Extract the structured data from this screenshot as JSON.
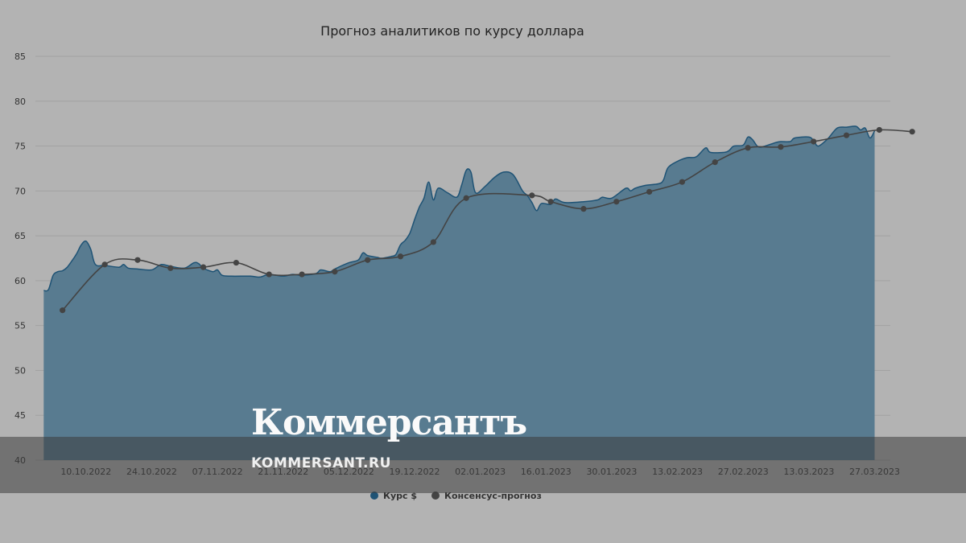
{
  "chart_data": {
    "type": "area",
    "title": "Прогноз аналитиков по курсу доллара",
    "ylim": [
      40,
      85
    ],
    "y_ticks": [
      40,
      45,
      50,
      55,
      60,
      65,
      70,
      75,
      80,
      85
    ],
    "x_range": [
      "2022-10-03",
      "2023-03-30"
    ],
    "x_ticks": [
      {
        "date": "2022-10-10",
        "label": "10.10.2022"
      },
      {
        "date": "2022-10-24",
        "label": "24.10.2022"
      },
      {
        "date": "2022-11-07",
        "label": "07.11.2022"
      },
      {
        "date": "2022-11-21",
        "label": "21.11.2022"
      },
      {
        "date": "2022-12-05",
        "label": "05.12.2022"
      },
      {
        "date": "2022-12-19",
        "label": "19.12.2022"
      },
      {
        "date": "2023-01-02",
        "label": "02.01.2023"
      },
      {
        "date": "2023-01-16",
        "label": "16.01.2023"
      },
      {
        "date": "2023-01-30",
        "label": "30.01.2023"
      },
      {
        "date": "2023-02-13",
        "label": "13.02.2023"
      },
      {
        "date": "2023-02-27",
        "label": "27.02.2023"
      },
      {
        "date": "2023-03-13",
        "label": "13.03.2023"
      },
      {
        "date": "2023-03-27",
        "label": "27.03.2023"
      }
    ],
    "grid": true,
    "legend": "bottom",
    "series": [
      {
        "name": "Курс $",
        "type": "area",
        "color": "#1f5375",
        "fill": "#587b90",
        "points": [
          [
            "2022-10-01",
            58.9
          ],
          [
            "2022-10-02",
            59.0
          ],
          [
            "2022-10-03",
            60.6
          ],
          [
            "2022-10-04",
            61.0
          ],
          [
            "2022-10-05",
            61.1
          ],
          [
            "2022-10-06",
            61.5
          ],
          [
            "2022-10-07",
            62.2
          ],
          [
            "2022-10-08",
            63.0
          ],
          [
            "2022-10-09",
            64.0
          ],
          [
            "2022-10-10",
            64.4
          ],
          [
            "2022-10-11",
            63.5
          ],
          [
            "2022-10-12",
            61.8
          ],
          [
            "2022-10-14",
            61.7
          ],
          [
            "2022-10-17",
            61.5
          ],
          [
            "2022-10-18",
            61.8
          ],
          [
            "2022-10-19",
            61.4
          ],
          [
            "2022-10-21",
            61.3
          ],
          [
            "2022-10-24",
            61.2
          ],
          [
            "2022-10-26",
            61.8
          ],
          [
            "2022-10-28",
            61.6
          ],
          [
            "2022-10-31",
            61.4
          ],
          [
            "2022-11-02",
            62.0
          ],
          [
            "2022-11-03",
            61.9
          ],
          [
            "2022-11-04",
            61.4
          ],
          [
            "2022-11-06",
            61.0
          ],
          [
            "2022-11-07",
            61.2
          ],
          [
            "2022-11-08",
            60.6
          ],
          [
            "2022-11-10",
            60.5
          ],
          [
            "2022-11-14",
            60.5
          ],
          [
            "2022-11-16",
            60.4
          ],
          [
            "2022-11-18",
            60.7
          ],
          [
            "2022-11-21",
            60.5
          ],
          [
            "2022-11-23",
            60.7
          ],
          [
            "2022-11-25",
            60.6
          ],
          [
            "2022-11-28",
            60.8
          ],
          [
            "2022-11-29",
            61.2
          ],
          [
            "2022-12-01",
            61.0
          ],
          [
            "2022-12-02",
            61.3
          ],
          [
            "2022-12-05",
            62.0
          ],
          [
            "2022-12-07",
            62.3
          ],
          [
            "2022-12-08",
            63.1
          ],
          [
            "2022-12-09",
            62.8
          ],
          [
            "2022-12-11",
            62.6
          ],
          [
            "2022-12-12",
            62.5
          ],
          [
            "2022-12-14",
            62.7
          ],
          [
            "2022-12-15",
            62.9
          ],
          [
            "2022-12-16",
            64.0
          ],
          [
            "2022-12-17",
            64.5
          ],
          [
            "2022-12-18",
            65.3
          ],
          [
            "2022-12-19",
            66.8
          ],
          [
            "2022-12-20",
            68.2
          ],
          [
            "2022-12-21",
            69.2
          ],
          [
            "2022-12-22",
            71.0
          ],
          [
            "2022-12-23",
            69.0
          ],
          [
            "2022-12-24",
            70.3
          ],
          [
            "2022-12-26",
            69.8
          ],
          [
            "2022-12-28",
            69.3
          ],
          [
            "2022-12-29",
            70.6
          ],
          [
            "2022-12-30",
            72.3
          ],
          [
            "2022-12-31",
            72.1
          ],
          [
            "2023-01-01",
            69.8
          ],
          [
            "2023-01-03",
            70.5
          ],
          [
            "2023-01-05",
            71.5
          ],
          [
            "2023-01-07",
            72.1
          ],
          [
            "2023-01-09",
            71.8
          ],
          [
            "2023-01-11",
            70.0
          ],
          [
            "2023-01-12",
            69.5
          ],
          [
            "2023-01-13",
            68.7
          ],
          [
            "2023-01-14",
            67.8
          ],
          [
            "2023-01-15",
            68.6
          ],
          [
            "2023-01-17",
            68.5
          ],
          [
            "2023-01-18",
            69.1
          ],
          [
            "2023-01-20",
            68.7
          ],
          [
            "2023-01-24",
            68.8
          ],
          [
            "2023-01-27",
            69.0
          ],
          [
            "2023-01-28",
            69.3
          ],
          [
            "2023-01-30",
            69.2
          ],
          [
            "2023-02-02",
            70.3
          ],
          [
            "2023-02-03",
            70.0
          ],
          [
            "2023-02-04",
            70.3
          ],
          [
            "2023-02-06",
            70.6
          ],
          [
            "2023-02-09",
            70.8
          ],
          [
            "2023-02-10",
            71.2
          ],
          [
            "2023-02-11",
            72.6
          ],
          [
            "2023-02-13",
            73.3
          ],
          [
            "2023-02-15",
            73.7
          ],
          [
            "2023-02-17",
            73.8
          ],
          [
            "2023-02-19",
            74.8
          ],
          [
            "2023-02-20",
            74.3
          ],
          [
            "2023-02-23",
            74.3
          ],
          [
            "2023-02-24",
            74.5
          ],
          [
            "2023-02-25",
            75.0
          ],
          [
            "2023-02-27",
            75.1
          ],
          [
            "2023-02-28",
            76.0
          ],
          [
            "2023-03-01",
            75.7
          ],
          [
            "2023-03-02",
            75.0
          ],
          [
            "2023-03-03",
            74.9
          ],
          [
            "2023-03-06",
            75.4
          ],
          [
            "2023-03-07",
            75.5
          ],
          [
            "2023-03-09",
            75.5
          ],
          [
            "2023-03-10",
            75.9
          ],
          [
            "2023-03-13",
            76.0
          ],
          [
            "2023-03-14",
            75.6
          ],
          [
            "2023-03-15",
            75.0
          ],
          [
            "2023-03-17",
            75.8
          ],
          [
            "2023-03-19",
            77.0
          ],
          [
            "2023-03-21",
            77.1
          ],
          [
            "2023-03-23",
            77.2
          ],
          [
            "2023-03-24",
            76.8
          ],
          [
            "2023-03-25",
            77.0
          ],
          [
            "2023-03-26",
            75.9
          ],
          [
            "2023-03-27",
            76.7
          ]
        ]
      },
      {
        "name": "Консенсус-прогноз",
        "type": "line",
        "color": "#444444",
        "points": [
          [
            "2022-10-05",
            56.7
          ],
          [
            "2022-10-14",
            61.8
          ],
          [
            "2022-10-21",
            62.3
          ],
          [
            "2022-10-28",
            61.4
          ],
          [
            "2022-11-04",
            61.5
          ],
          [
            "2022-11-11",
            62.0
          ],
          [
            "2022-11-18",
            60.7
          ],
          [
            "2022-11-25",
            60.7
          ],
          [
            "2022-12-02",
            61.0
          ],
          [
            "2022-12-09",
            62.3
          ],
          [
            "2022-12-16",
            62.7
          ],
          [
            "2022-12-23",
            64.3
          ],
          [
            "2022-12-30",
            69.2
          ],
          [
            "2023-01-13",
            69.5
          ],
          [
            "2023-01-17",
            68.8
          ],
          [
            "2023-01-24",
            68.0
          ],
          [
            "2023-01-31",
            68.8
          ],
          [
            "2023-02-07",
            69.9
          ],
          [
            "2023-02-14",
            71.0
          ],
          [
            "2023-02-21",
            73.2
          ],
          [
            "2023-02-28",
            74.8
          ],
          [
            "2023-03-07",
            74.9
          ],
          [
            "2023-03-14",
            75.5
          ],
          [
            "2023-03-21",
            76.2
          ],
          [
            "2023-03-28",
            76.8
          ],
          [
            "2023-04-04",
            76.6
          ]
        ]
      }
    ]
  },
  "watermark": {
    "logo": "Коммерсантъ",
    "url": "KOMMERSANT.RU"
  }
}
